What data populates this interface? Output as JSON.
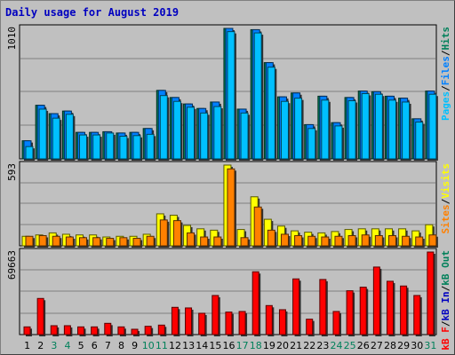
{
  "title": "Daily usage for August 2019",
  "colors": {
    "background": "#c0c0c0",
    "title": "#0000c0",
    "pages": "#00c0ff",
    "files": "#0080ff",
    "hits": "#00805a",
    "visits": "#ffff00",
    "sites": "#ff8000",
    "kb_f": "#ff0000",
    "kb_in": "#0000c0",
    "kb_out": "#00805a",
    "day_weekday": "#000000",
    "day_weekend": "#00805a"
  },
  "panels": {
    "top": {
      "ymax_label": "1010",
      "legend": [
        "Pages",
        "/",
        "Files",
        "/",
        "Hits"
      ]
    },
    "middle": {
      "ymax_label": "593",
      "legend": [
        "Sites",
        "/",
        "Visits"
      ]
    },
    "bottom": {
      "ymax_label": "69663",
      "legend": [
        "kB F",
        "/",
        "kB In",
        "/",
        "kB Out"
      ]
    }
  },
  "chart_data": [
    {
      "type": "bar",
      "panel": "Pages / Files / Hits",
      "categories": [
        "1",
        "2",
        "3",
        "4",
        "5",
        "6",
        "7",
        "8",
        "9",
        "10",
        "11",
        "12",
        "13",
        "14",
        "15",
        "16",
        "17",
        "18",
        "19",
        "20",
        "21",
        "22",
        "23",
        "24",
        "25",
        "26",
        "27",
        "28",
        "29",
        "30",
        "31"
      ],
      "weekend_days": [
        "3",
        "4",
        "10",
        "11",
        "17",
        "18",
        "24",
        "25",
        "31"
      ],
      "ylim": [
        0,
        1010
      ],
      "series": [
        {
          "name": "Hits",
          "values": [
            140,
            415,
            350,
            370,
            205,
            205,
            210,
            200,
            205,
            235,
            530,
            475,
            425,
            390,
            440,
            1010,
            385,
            1000,
            745,
            480,
            510,
            265,
            485,
            280,
            475,
            525,
            520,
            485,
            470,
            310,
            525
          ]
        },
        {
          "name": "Files",
          "values": [
            140,
            415,
            350,
            370,
            205,
            205,
            210,
            200,
            205,
            235,
            530,
            475,
            425,
            390,
            440,
            1010,
            385,
            1000,
            745,
            480,
            510,
            265,
            485,
            280,
            475,
            525,
            520,
            485,
            470,
            310,
            525
          ]
        },
        {
          "name": "Pages",
          "values": [
            95,
            385,
            315,
            345,
            185,
            185,
            200,
            175,
            180,
            190,
            490,
            445,
            400,
            355,
            405,
            985,
            355,
            975,
            710,
            445,
            470,
            235,
            455,
            255,
            450,
            505,
            500,
            455,
            440,
            285,
            500
          ]
        }
      ]
    },
    {
      "type": "bar",
      "panel": "Sites / Visits",
      "categories": [
        "1",
        "2",
        "3",
        "4",
        "5",
        "6",
        "7",
        "8",
        "9",
        "10",
        "11",
        "12",
        "13",
        "14",
        "15",
        "16",
        "17",
        "18",
        "19",
        "20",
        "21",
        "22",
        "23",
        "24",
        "25",
        "26",
        "27",
        "28",
        "29",
        "30",
        "31"
      ],
      "ylim": [
        0,
        593
      ],
      "series": [
        {
          "name": "Visits",
          "values": [
            70,
            80,
            95,
            85,
            80,
            80,
            65,
            70,
            70,
            85,
            235,
            225,
            150,
            125,
            115,
            593,
            120,
            360,
            195,
            145,
            110,
            100,
            95,
            105,
            120,
            125,
            125,
            125,
            125,
            110,
            155
          ]
        },
        {
          "name": "Sites",
          "values": [
            70,
            75,
            70,
            65,
            60,
            60,
            55,
            60,
            55,
            70,
            190,
            185,
            95,
            65,
            65,
            565,
            60,
            285,
            115,
            85,
            75,
            70,
            65,
            70,
            75,
            80,
            75,
            75,
            70,
            65,
            80
          ]
        }
      ]
    },
    {
      "type": "bar",
      "panel": "kB F / kB In / kB Out",
      "categories": [
        "1",
        "2",
        "3",
        "4",
        "5",
        "6",
        "7",
        "8",
        "9",
        "10",
        "11",
        "12",
        "13",
        "14",
        "15",
        "16",
        "17",
        "18",
        "19",
        "20",
        "21",
        "22",
        "23",
        "24",
        "25",
        "26",
        "27",
        "28",
        "29",
        "30",
        "31"
      ],
      "ylim": [
        0,
        69663
      ],
      "series": [
        {
          "name": "kB F",
          "values": [
            6500,
            30500,
            7500,
            7500,
            6500,
            6500,
            9500,
            6500,
            4500,
            7000,
            8000,
            23000,
            22500,
            18000,
            33000,
            19000,
            19500,
            53000,
            24500,
            21000,
            47000,
            13000,
            46500,
            19500,
            37000,
            40000,
            57000,
            45000,
            41000,
            33000,
            69663
          ]
        }
      ]
    }
  ]
}
